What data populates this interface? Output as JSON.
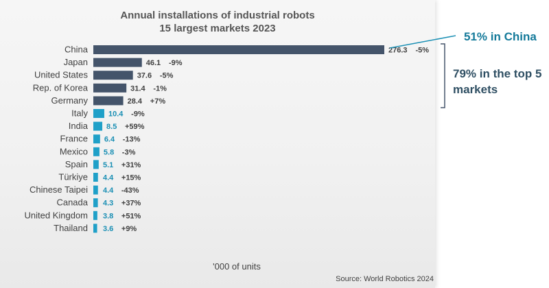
{
  "chart_data": {
    "type": "bar",
    "orientation": "horizontal",
    "title": "Annual installations of industrial robots",
    "subtitle": "15 largest markets 2023",
    "xlabel": "'000 of units",
    "source": "Source: World Robotics 2024",
    "categories": [
      "China",
      "Japan",
      "United States",
      "Rep. of Korea",
      "Germany",
      "Italy",
      "India",
      "France",
      "Mexico",
      "Spain",
      "Türkiye",
      "Chinese Taipei",
      "Canada",
      "United Kingdom",
      "Thailand"
    ],
    "values": [
      276.3,
      46.1,
      37.6,
      31.4,
      28.4,
      10.4,
      8.5,
      6.4,
      5.8,
      5.1,
      4.4,
      4.4,
      4.3,
      3.8,
      3.6
    ],
    "value_labels": [
      "276.3",
      "46.1",
      "37.6",
      "31.4",
      "28.4",
      "10.4",
      "8.5",
      "6.4",
      "5.8",
      "5.1",
      "4.4",
      "4.4",
      "4.3",
      "3.8",
      "3.6"
    ],
    "changes": [
      "-5%",
      "-9%",
      "-5%",
      "-1%",
      "+7%",
      "-9%",
      "+59%",
      "-13%",
      "-3%",
      "+31%",
      "+15%",
      "-43%",
      "+37%",
      "+51%",
      "+9%"
    ],
    "xlim": [
      0,
      276.3
    ],
    "grid": false,
    "colors": {
      "top5": "#44546a",
      "others": "#1fa0c8",
      "top5_label": "#404040",
      "others_label": "#1a8fb4"
    }
  },
  "annotations": {
    "china_share": "51% in China",
    "top5_share": "79% in the top 5 markets"
  }
}
